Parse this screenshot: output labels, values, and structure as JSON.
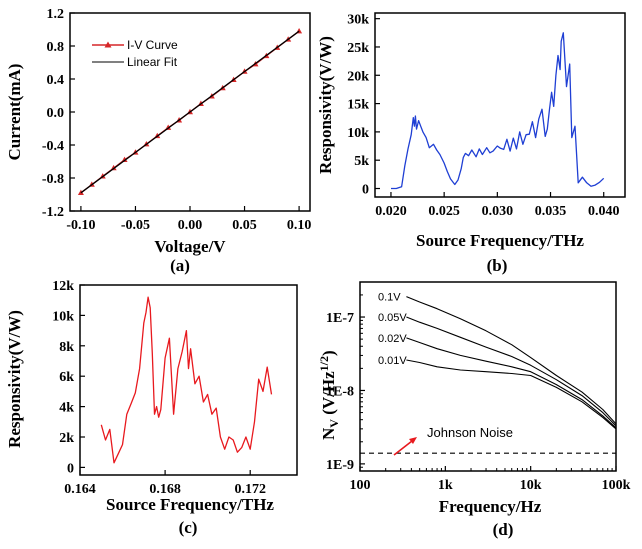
{
  "chart_data": [
    {
      "panel_label": "(a)",
      "type": "line",
      "xlabel": "Voltage/V",
      "ylabel": "Current(mA)",
      "xlim": [
        -0.11,
        0.11
      ],
      "ylim": [
        -1.2,
        1.2
      ],
      "xticks": [
        "-0.10",
        "-0.05",
        "0.00",
        "0.05",
        "0.10"
      ],
      "xtick_values": [
        -0.1,
        -0.05,
        0.0,
        0.05,
        0.1
      ],
      "yticks": [
        "-1.2",
        "-0.8",
        "-0.4",
        "0.0",
        "0.4",
        "0.8",
        "1.2"
      ],
      "ytick_values": [
        -1.2,
        -0.8,
        -0.4,
        0.0,
        0.4,
        0.8,
        1.2
      ],
      "legend_position": "top-left",
      "series": [
        {
          "name": "I-V Curve",
          "color": "#d62728",
          "marker": "triangle",
          "x": [
            -0.1,
            -0.09,
            -0.08,
            -0.07,
            -0.06,
            -0.05,
            -0.04,
            -0.03,
            -0.02,
            -0.01,
            0.0,
            0.01,
            0.02,
            0.03,
            0.04,
            0.05,
            0.06,
            0.07,
            0.08,
            0.09,
            0.1
          ],
          "y": [
            -0.98,
            -0.88,
            -0.78,
            -0.68,
            -0.58,
            -0.49,
            -0.39,
            -0.29,
            -0.19,
            -0.1,
            0.0,
            0.1,
            0.19,
            0.29,
            0.39,
            0.49,
            0.58,
            0.68,
            0.78,
            0.88,
            0.98
          ]
        },
        {
          "name": "Linear Fit",
          "color": "#000000",
          "x": [
            -0.1,
            0.1
          ],
          "y": [
            -0.98,
            0.98
          ]
        }
      ]
    },
    {
      "panel_label": "(b)",
      "type": "line",
      "xlabel": "Source Frequency/THz",
      "ylabel": "Responsivity(V/W)",
      "xlim": [
        0.0185,
        0.042
      ],
      "ylim": [
        -1500,
        31000
      ],
      "xticks": [
        "0.020",
        "0.025",
        "0.030",
        "0.035",
        "0.040"
      ],
      "xtick_values": [
        0.02,
        0.025,
        0.03,
        0.035,
        0.04
      ],
      "yticks": [
        "0",
        "5k",
        "10k",
        "15k",
        "20k",
        "25k",
        "30k"
      ],
      "ytick_values": [
        0,
        5000,
        10000,
        15000,
        20000,
        25000,
        30000
      ],
      "series": [
        {
          "color": "#1f3fd4",
          "x": [
            0.02,
            0.0205,
            0.021,
            0.0213,
            0.0216,
            0.0219,
            0.0221,
            0.0222,
            0.0223,
            0.0224,
            0.0226,
            0.0228,
            0.023,
            0.0233,
            0.0236,
            0.024,
            0.0243,
            0.0246,
            0.025,
            0.0253,
            0.0256,
            0.026,
            0.0263,
            0.0266,
            0.0268,
            0.027,
            0.0273,
            0.0276,
            0.028,
            0.0283,
            0.0286,
            0.029,
            0.0293,
            0.0296,
            0.03,
            0.0303,
            0.0306,
            0.0309,
            0.0312,
            0.0315,
            0.0318,
            0.0321,
            0.0324,
            0.0327,
            0.033,
            0.0333,
            0.0336,
            0.0339,
            0.0342,
            0.0345,
            0.0347,
            0.0349,
            0.0351,
            0.0353,
            0.0355,
            0.0357,
            0.0359,
            0.036,
            0.0362,
            0.0365,
            0.0368,
            0.037,
            0.0373,
            0.0376,
            0.038,
            0.0384,
            0.0388,
            0.0392,
            0.0396,
            0.04
          ],
          "y": [
            0,
            0,
            300,
            4000,
            7000,
            9500,
            12500,
            11000,
            12800,
            10500,
            12000,
            11000,
            10000,
            9000,
            7200,
            7800,
            6800,
            6000,
            4500,
            3000,
            1700,
            700,
            1500,
            3500,
            5500,
            6200,
            5800,
            6800,
            5600,
            7000,
            6000,
            7200,
            6300,
            6600,
            7500,
            7100,
            6900,
            8700,
            6600,
            8900,
            7000,
            10000,
            7800,
            9500,
            9600,
            11800,
            9000,
            12300,
            14000,
            9200,
            10500,
            14000,
            17000,
            14500,
            20000,
            23500,
            21000,
            26000,
            27500,
            18000,
            22000,
            9000,
            11000,
            1000,
            2000,
            1000,
            400,
            600,
            1100,
            1800
          ]
        }
      ]
    },
    {
      "panel_label": "(c)",
      "type": "line",
      "xlabel": "Source Frequency/THz",
      "ylabel": "Responsivity(V/W)",
      "xlim": [
        0.164,
        0.1742
      ],
      "ylim": [
        -500,
        12000
      ],
      "xticks": [
        "0.164",
        "0.168",
        "0.172"
      ],
      "xtick_values": [
        0.164,
        0.168,
        0.172
      ],
      "yticks": [
        "0",
        "2k",
        "4k",
        "6k",
        "8k",
        "10k",
        "12k"
      ],
      "ytick_values": [
        0,
        2000,
        4000,
        6000,
        8000,
        10000,
        12000
      ],
      "series": [
        {
          "color": "#e8191e",
          "x": [
            0.165,
            0.1652,
            0.1654,
            0.1656,
            0.1658,
            0.166,
            0.1662,
            0.1664,
            0.1666,
            0.1668,
            0.167,
            0.1671,
            0.1672,
            0.1673,
            0.1674,
            0.1675,
            0.1676,
            0.1677,
            0.1678,
            0.168,
            0.1682,
            0.1684,
            0.1686,
            0.1688,
            0.169,
            0.1691,
            0.1692,
            0.1694,
            0.1696,
            0.1698,
            0.17,
            0.1702,
            0.1704,
            0.1706,
            0.1708,
            0.171,
            0.1712,
            0.1714,
            0.1716,
            0.1718,
            0.172,
            0.1722,
            0.1724,
            0.1726,
            0.1728,
            0.173
          ],
          "y": [
            2800,
            1800,
            2500,
            300,
            900,
            1500,
            3500,
            4200,
            4900,
            6500,
            9500,
            10200,
            11200,
            10500,
            7500,
            3500,
            4000,
            3300,
            3800,
            7200,
            8500,
            3500,
            6500,
            7600,
            9000,
            6500,
            7800,
            5500,
            6000,
            4300,
            4800,
            3500,
            3900,
            2000,
            1200,
            2000,
            1800,
            1000,
            1300,
            2000,
            1200,
            3000,
            5800,
            5000,
            6600,
            4800
          ]
        }
      ]
    },
    {
      "panel_label": "(d)",
      "type": "line",
      "xscale": "log",
      "yscale": "log",
      "xlabel": "Frequency/Hz",
      "ylabel": "N_V (V/Hz^1/2)",
      "xlim": [
        100,
        100000
      ],
      "ylim": [
        8e-10,
        3e-07
      ],
      "xticks": [
        "100",
        "1k",
        "10k",
        "100k"
      ],
      "xtick_values": [
        100,
        1000,
        10000,
        100000
      ],
      "yticks": [
        "1E-9",
        "1E-8",
        "1E-7"
      ],
      "ytick_values": [
        1e-09,
        1e-08,
        1e-07
      ],
      "annotation": "Johnson Noise",
      "series": [
        {
          "name": "0.1V",
          "color": "#000000",
          "x": [
            350,
            500,
            800,
            1500,
            3000,
            6000,
            10000,
            20000,
            40000,
            70000,
            100000
          ],
          "y": [
            1.9e-07,
            1.6e-07,
            1.3e-07,
            9.5e-08,
            6.5e-08,
            4.2e-08,
            2.8e-08,
            1.6e-08,
            9.5e-09,
            5.5e-09,
            3.5e-09
          ]
        },
        {
          "name": "0.05V",
          "color": "#000000",
          "x": [
            350,
            500,
            800,
            1500,
            3000,
            6000,
            10000,
            20000,
            40000,
            70000,
            100000
          ],
          "y": [
            1e-07,
            8.5e-08,
            7e-08,
            5.3e-08,
            3.9e-08,
            2.9e-08,
            2.2e-08,
            1.4e-08,
            8.5e-09,
            5e-09,
            3.3e-09
          ]
        },
        {
          "name": "0.02V",
          "color": "#000000",
          "x": [
            350,
            500,
            800,
            1500,
            3000,
            6000,
            10000,
            20000,
            40000,
            70000,
            100000
          ],
          "y": [
            5.2e-08,
            4.5e-08,
            3.7e-08,
            3e-08,
            2.5e-08,
            2.1e-08,
            1.8e-08,
            1.2e-08,
            7.5e-09,
            4.5e-09,
            3.1e-09
          ]
        },
        {
          "name": "0.01V",
          "color": "#000000",
          "x": [
            350,
            500,
            800,
            1500,
            3000,
            6000,
            10000,
            20000,
            40000,
            70000,
            100000
          ],
          "y": [
            2.6e-08,
            2.4e-08,
            2.1e-08,
            1.9e-08,
            1.8e-08,
            1.7e-08,
            1.6e-08,
            1.1e-08,
            7e-09,
            4.3e-09,
            3e-09
          ]
        },
        {
          "name": "Johnson Noise",
          "color": "#000000",
          "dash": "dashed",
          "x": [
            100,
            100000
          ],
          "y": [
            1.4e-09,
            1.4e-09
          ]
        }
      ]
    }
  ]
}
